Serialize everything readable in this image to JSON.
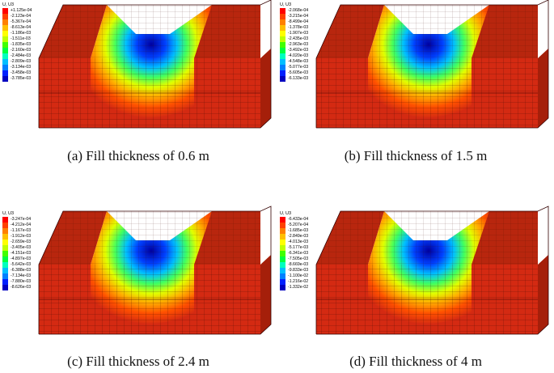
{
  "panels": [
    {
      "caption": "(a) Fill thickness of 0.6 m",
      "legend_title": "U, U3",
      "legend_values": [
        "+1.125e-04",
        "-2.123e-04",
        "-5.367e-04",
        "-8.613e-04",
        "-1.186e-03",
        "-1.511e-03",
        "-1.835e-03",
        "-2.160e-03",
        "-2.484e-03",
        "-2.809e-03",
        "-3.134e-03",
        "-3.458e-03",
        "-3.785e-03"
      ]
    },
    {
      "caption": "(b) Fill thickness of 1.5 m",
      "legend_title": "U, U3",
      "legend_values": [
        "-2.068e-04",
        "-3.215e-04",
        "-8.499e-04",
        "-1.378e-03",
        "-1.907e-03",
        "-2.435e-03",
        "-2.963e-03",
        "-3.492e-03",
        "-4.020e-03",
        "-4.548e-03",
        "-5.077e-03",
        "-5.605e-03",
        "-6.133e-03"
      ]
    },
    {
      "caption": "(c) Fill thickness of 2.4 m",
      "legend_title": "U, U3",
      "legend_values": [
        "-3.247e-04",
        "-4.212e-04",
        "-1.167e-03",
        "-1.912e-03",
        "-2.659e-03",
        "-3.405e-03",
        "-4.151e-03",
        "-4.897e-03",
        "-5.642e-03",
        "-6.388e-03",
        "-7.134e-03",
        "-7.880e-03",
        "-8.626e-03"
      ]
    },
    {
      "caption": "(d) Fill thickness of 4 m",
      "legend_title": "U, U3",
      "legend_values": [
        "-6.433e-04",
        "-5.207e-04",
        "-1.685e-03",
        "-2.849e-03",
        "-4.013e-03",
        "-5.177e-03",
        "-6.341e-03",
        "-7.505e-03",
        "-8.669e-03",
        "-9.833e-03",
        "-1.100e-02",
        "-1.216e-02",
        "-1.332e-02"
      ]
    }
  ],
  "colors": {
    "scale": [
      "#ff0000",
      "#ff4000",
      "#ff8000",
      "#ffbf00",
      "#ffff00",
      "#bfff00",
      "#40ff00",
      "#00ff40",
      "#00ffbf",
      "#00bfff",
      "#0080ff",
      "#0020ff",
      "#0000c0"
    ],
    "model_face": "#d42a12",
    "model_top": "#b8260e",
    "model_side": "#a51f0a",
    "mesh": "#3a0a00"
  }
}
